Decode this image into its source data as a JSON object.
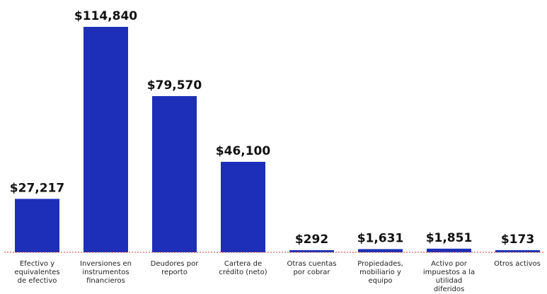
{
  "chart_data": {
    "type": "bar",
    "categories": [
      [
        "Efectivo y",
        "equivalentes",
        "de efectivo"
      ],
      [
        "Inversiones en",
        "instrumentos",
        "financieros"
      ],
      [
        "Deudores por",
        "reporto"
      ],
      [
        "Cartera de",
        "crédito (neto)"
      ],
      [
        "Otras cuentas",
        "por cobrar"
      ],
      [
        "Propiedades,",
        "mobiliario y",
        "equipo"
      ],
      [
        "Activo por",
        "impuestos a la",
        "utilidad",
        "diferidos"
      ],
      [
        "Otros activos"
      ]
    ],
    "values": [
      27217,
      114840,
      79570,
      46100,
      292,
      1631,
      1851,
      173
    ],
    "value_labels": [
      "$27,217",
      "$114,840",
      "$79,570",
      "$46,100",
      "$292",
      "$1,631",
      "$1,851",
      "$173"
    ],
    "title": "",
    "xlabel": "",
    "ylabel": "",
    "ylim": [
      0,
      114840
    ],
    "grid": false,
    "legend": "none",
    "colors": {
      "bar": "#1d2fb8",
      "baseline": "#c0392b"
    }
  }
}
